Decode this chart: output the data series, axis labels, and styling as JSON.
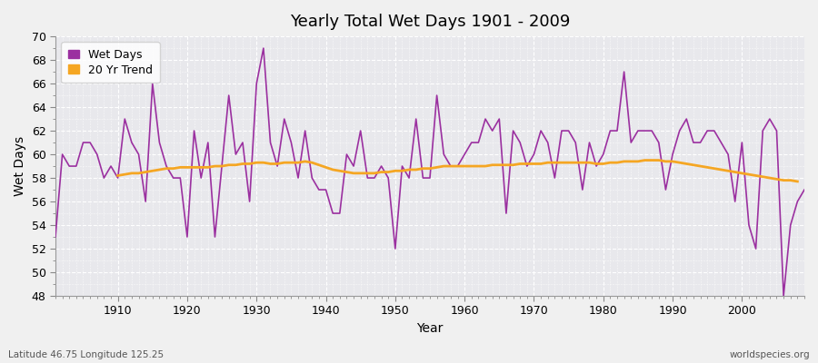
{
  "title": "Yearly Total Wet Days 1901 - 2009",
  "xlabel": "Year",
  "ylabel": "Wet Days",
  "footnote_left": "Latitude 46.75 Longitude 125.25",
  "footnote_right": "worldspecies.org",
  "wet_days_color": "#9b30a0",
  "trend_color": "#f5a623",
  "background_color": "#e8e8ec",
  "fig_color": "#f0f0f0",
  "ylim": [
    48,
    70
  ],
  "yticks": [
    48,
    50,
    52,
    54,
    56,
    58,
    60,
    62,
    64,
    66,
    68,
    70
  ],
  "xlim": [
    1901,
    2009
  ],
  "years": [
    1901,
    1902,
    1903,
    1904,
    1905,
    1906,
    1907,
    1908,
    1909,
    1910,
    1911,
    1912,
    1913,
    1914,
    1915,
    1916,
    1917,
    1918,
    1919,
    1920,
    1921,
    1922,
    1923,
    1924,
    1925,
    1926,
    1927,
    1928,
    1929,
    1930,
    1931,
    1932,
    1933,
    1934,
    1935,
    1936,
    1937,
    1938,
    1939,
    1940,
    1941,
    1942,
    1943,
    1944,
    1945,
    1946,
    1947,
    1948,
    1949,
    1950,
    1951,
    1952,
    1953,
    1954,
    1955,
    1956,
    1957,
    1958,
    1959,
    1960,
    1961,
    1962,
    1963,
    1964,
    1965,
    1966,
    1967,
    1968,
    1969,
    1970,
    1971,
    1972,
    1973,
    1974,
    1975,
    1976,
    1977,
    1978,
    1979,
    1980,
    1981,
    1982,
    1983,
    1984,
    1985,
    1986,
    1987,
    1988,
    1989,
    1990,
    1991,
    1992,
    1993,
    1994,
    1995,
    1996,
    1997,
    1998,
    1999,
    2000,
    2001,
    2002,
    2003,
    2004,
    2005,
    2006,
    2007,
    2008,
    2009
  ],
  "wet_days": [
    53,
    60,
    59,
    59,
    61,
    61,
    60,
    58,
    59,
    58,
    63,
    61,
    60,
    56,
    66,
    61,
    59,
    58,
    58,
    53,
    62,
    58,
    61,
    53,
    59,
    65,
    60,
    61,
    56,
    66,
    69,
    61,
    59,
    63,
    61,
    58,
    62,
    58,
    57,
    57,
    55,
    55,
    60,
    59,
    62,
    58,
    58,
    59,
    58,
    52,
    59,
    58,
    63,
    58,
    58,
    65,
    60,
    59,
    59,
    60,
    61,
    61,
    63,
    62,
    63,
    55,
    62,
    61,
    59,
    60,
    62,
    61,
    58,
    62,
    62,
    61,
    57,
    61,
    59,
    60,
    62,
    62,
    67,
    61,
    62,
    62,
    62,
    61,
    57,
    60,
    62,
    63,
    61,
    61,
    62,
    62,
    61,
    60,
    56,
    61,
    54,
    52,
    62,
    63,
    62,
    48,
    54,
    56,
    57
  ],
  "trend_years": [
    1901,
    1902,
    1903,
    1904,
    1905,
    1906,
    1907,
    1908,
    1909,
    1910,
    1911,
    1912,
    1913,
    1914,
    1915,
    1916,
    1917,
    1918,
    1919,
    1920,
    1921,
    1922,
    1923,
    1924,
    1925,
    1926,
    1927,
    1928,
    1929,
    1930,
    1931,
    1932,
    1933,
    1934,
    1935,
    1936,
    1937,
    1938,
    1939,
    1940,
    1941,
    1942,
    1943,
    1944,
    1945,
    1946,
    1947,
    1948,
    1949,
    1950,
    1951,
    1952,
    1953,
    1954,
    1955,
    1956,
    1957,
    1958,
    1959,
    1960,
    1961,
    1962,
    1963,
    1964,
    1965,
    1966,
    1967,
    1968,
    1969,
    1970,
    1971,
    1972,
    1973,
    1974,
    1975,
    1976,
    1977,
    1978,
    1979,
    1980,
    1981,
    1982,
    1983,
    1984,
    1985,
    1986,
    1987,
    1988,
    1989,
    1990,
    1991,
    1992,
    1993,
    1994,
    1995,
    1996,
    1997,
    1998,
    1999,
    2000,
    2001,
    2002,
    2003,
    2004,
    2005,
    2006,
    2007,
    2008,
    2009
  ],
  "trend_values": [
    null,
    null,
    null,
    null,
    null,
    null,
    null,
    null,
    null,
    58.2,
    58.3,
    58.4,
    58.4,
    58.5,
    58.6,
    58.7,
    58.8,
    58.8,
    58.9,
    58.9,
    58.9,
    58.9,
    58.9,
    59.0,
    59.0,
    59.1,
    59.1,
    59.2,
    59.2,
    59.3,
    59.3,
    59.2,
    59.2,
    59.3,
    59.3,
    59.3,
    59.4,
    59.3,
    59.1,
    58.9,
    58.7,
    58.6,
    58.5,
    58.4,
    58.4,
    58.4,
    58.4,
    58.5,
    58.5,
    58.6,
    58.6,
    58.7,
    58.7,
    58.8,
    58.8,
    58.9,
    59.0,
    59.0,
    59.0,
    59.0,
    59.0,
    59.0,
    59.0,
    59.1,
    59.1,
    59.1,
    59.1,
    59.2,
    59.2,
    59.2,
    59.2,
    59.3,
    59.3,
    59.3,
    59.3,
    59.3,
    59.3,
    59.3,
    59.2,
    59.2,
    59.3,
    59.3,
    59.4,
    59.4,
    59.4,
    59.5,
    59.5,
    59.5,
    59.4,
    59.4,
    59.3,
    59.2,
    59.1,
    59.0,
    58.9,
    58.8,
    58.7,
    58.6,
    58.5,
    58.4,
    58.3,
    58.2,
    58.1,
    58.0,
    57.9,
    57.8,
    57.8,
    57.7,
    null
  ]
}
